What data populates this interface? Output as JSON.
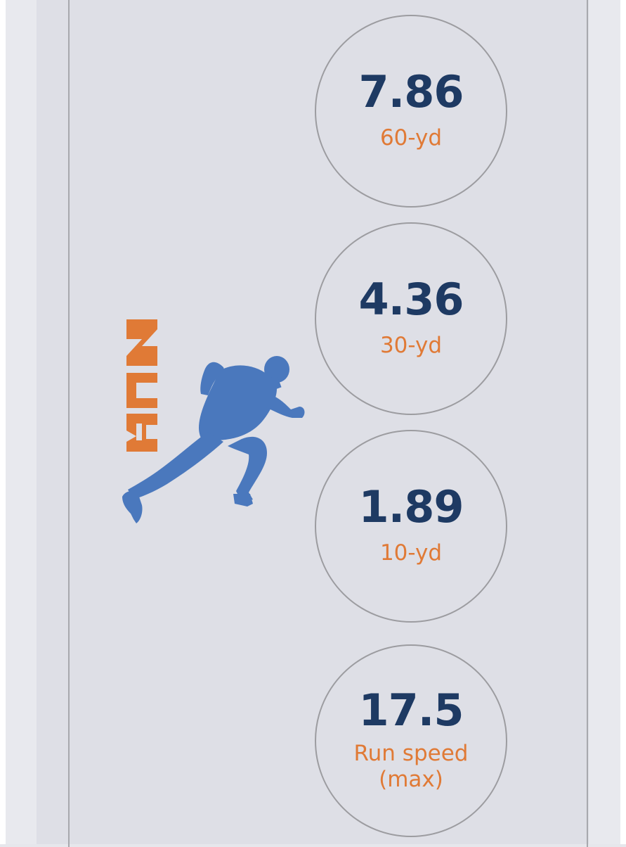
{
  "logo": {
    "text": "RUN",
    "icon": "runner-icon",
    "text_color": "#e07a36",
    "figure_color": "#4a78bd"
  },
  "stats": [
    {
      "value": "7.86",
      "label": "60-yd"
    },
    {
      "value": "4.36",
      "label": "30-yd"
    },
    {
      "value": "1.89",
      "label": "10-yd"
    },
    {
      "value": "17.5",
      "label": "Run speed (max)"
    }
  ],
  "colors": {
    "value": "#1e3a63",
    "label": "#e07a36",
    "circle_border": "#9c9ca0",
    "panel_background": "#dedfe6"
  }
}
